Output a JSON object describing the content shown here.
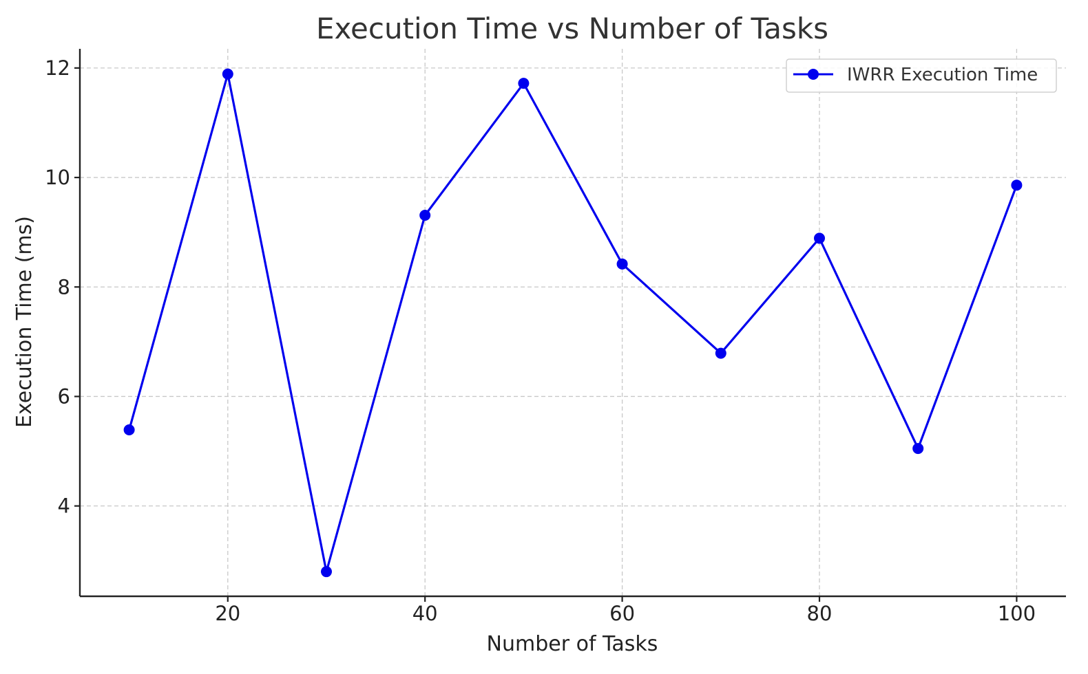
{
  "chart_data": {
    "type": "line",
    "title": "Execution Time vs Number of Tasks",
    "xlabel": "Number of Tasks",
    "ylabel": "Execution Time (ms)",
    "xlim": [
      5,
      105
    ],
    "ylim": [
      2.35,
      12.35
    ],
    "x_ticks": [
      20,
      40,
      60,
      80,
      100
    ],
    "y_ticks": [
      4,
      6,
      8,
      10,
      12
    ],
    "grid": true,
    "legend_position": "top-right",
    "series": [
      {
        "name": "IWRR Execution Time",
        "color": "#0000ee",
        "marker": "circle",
        "x": [
          10,
          20,
          30,
          40,
          50,
          60,
          70,
          80,
          90,
          100
        ],
        "y": [
          5.39,
          11.89,
          2.8,
          9.31,
          11.72,
          8.42,
          6.79,
          8.89,
          5.05,
          9.86
        ]
      }
    ]
  }
}
